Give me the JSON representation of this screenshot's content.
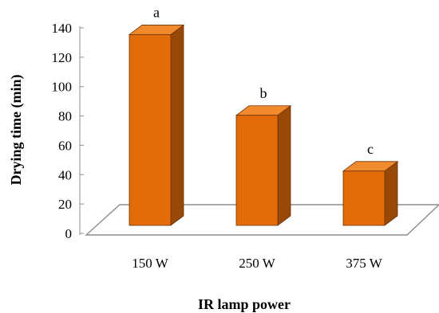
{
  "chart_data": {
    "type": "bar",
    "categories": [
      "150 W",
      "250 W",
      "375 W"
    ],
    "values": [
      130,
      75,
      37
    ],
    "significance_letters": [
      "a",
      "b",
      "c"
    ],
    "xlabel": "IR lamp power",
    "ylabel": "Drying time (min)",
    "ylim": [
      0,
      140
    ],
    "yticks": [
      "0",
      "20",
      "40",
      "60",
      "80",
      "100",
      "120",
      "140"
    ],
    "grid": false,
    "legend": "none",
    "three_d": true
  },
  "colors": {
    "bar_front": "#E36C0A",
    "bar_top": "#F08A2C",
    "bar_side": "#984807",
    "bar_edge": "#6B3206",
    "floor_line": "#8C8C8C"
  }
}
